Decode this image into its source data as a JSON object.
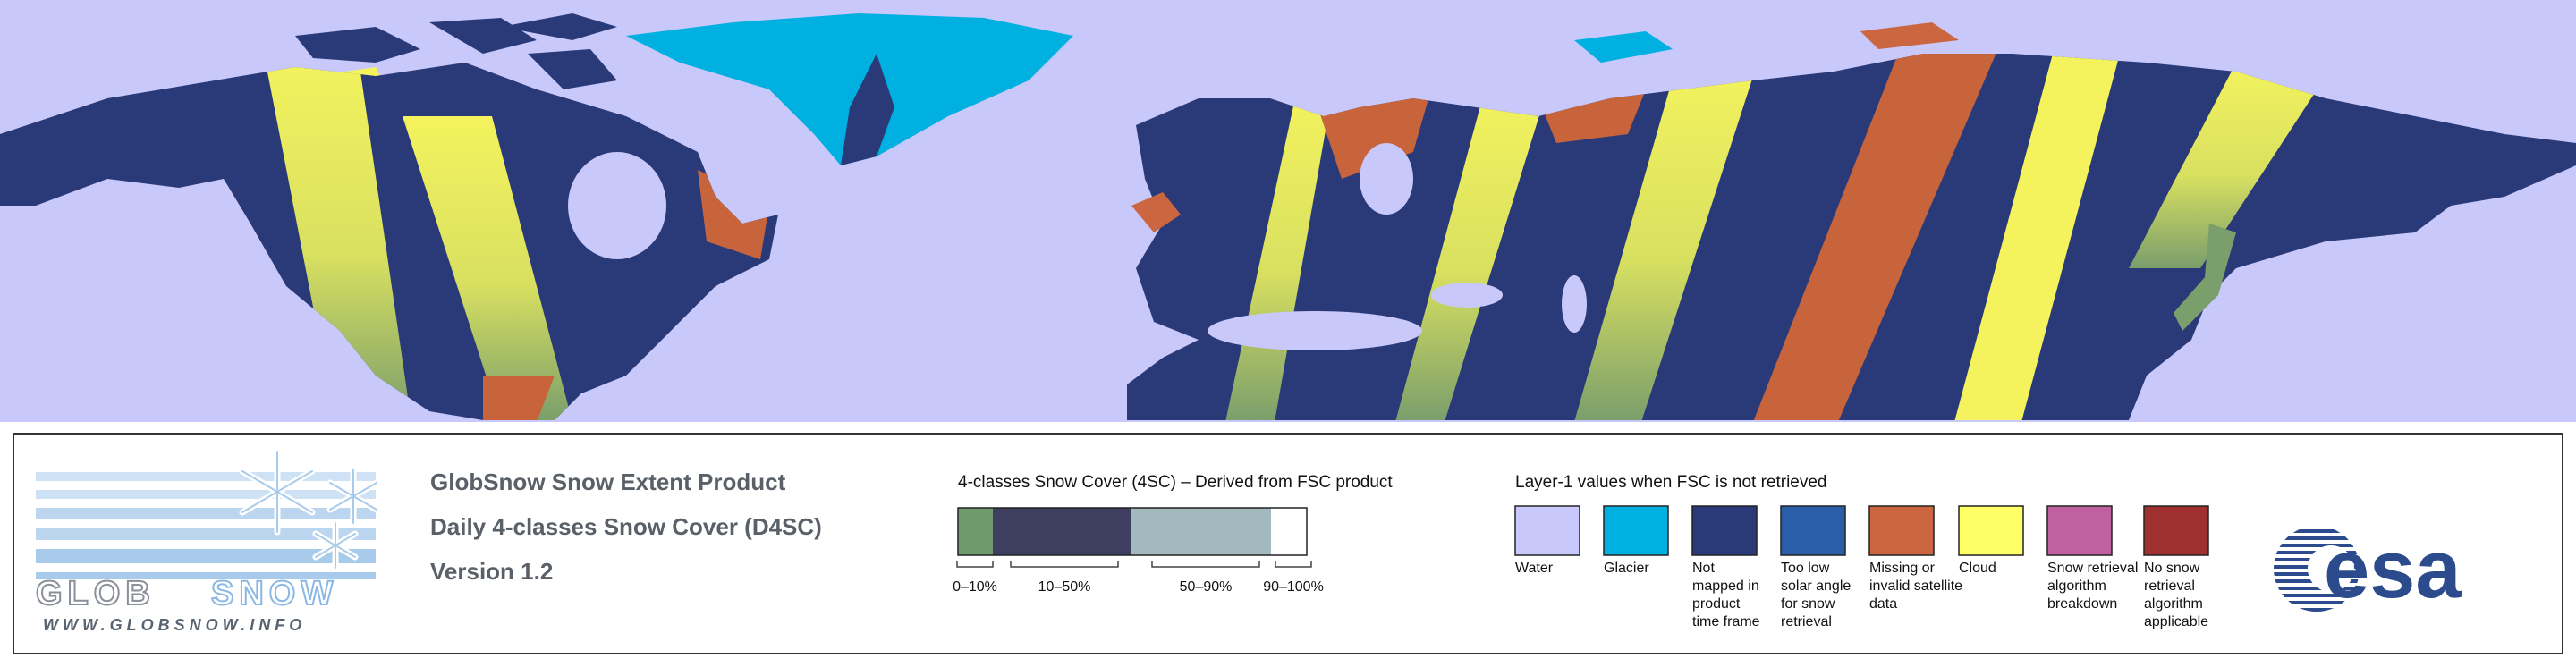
{
  "header": {
    "title_lines": [
      "GlobSnow Snow Extent Product",
      "Daily 4-classes Snow Cover (D4SC)",
      "Version 1.2"
    ]
  },
  "logo": {
    "name": [
      "GLOB",
      "SNOW"
    ],
    "url": "WWW.GLOBSNOW.INFO"
  },
  "snow_cover_4sc": {
    "heading": "4-classes Snow Cover (4SC) – Derived from FSC product",
    "classes": [
      {
        "label": "0–10%",
        "color": "#6e9a6c"
      },
      {
        "label": "10–50%",
        "color": "#3e3f60"
      },
      {
        "label": "50–90%",
        "color": "#a2b9bd"
      },
      {
        "label": "90–100%",
        "color": "#ffffff"
      }
    ]
  },
  "layer1": {
    "heading": "Layer-1 values when FSC is not retrieved",
    "items": [
      {
        "label": [
          "Water"
        ],
        "color": "#c8c8fa"
      },
      {
        "label": [
          "Glacier"
        ],
        "color": "#00b0e0"
      },
      {
        "label": [
          "Not",
          "mapped in",
          "product",
          "time frame"
        ],
        "color": "#2a3a78"
      },
      {
        "label": [
          "Too low",
          "solar angle",
          "for snow",
          "retrieval"
        ],
        "color": "#2b5ea8"
      },
      {
        "label": [
          "Missing or",
          "invalid satellite",
          "data"
        ],
        "color": "#cc6640"
      },
      {
        "label": [
          "Cloud"
        ],
        "color": "#ffff66"
      },
      {
        "label": [
          "Snow retrieval",
          "algorithm",
          "breakdown"
        ],
        "color": "#c060a0"
      },
      {
        "label": [
          "No snow",
          "retrieval",
          "algorithm",
          "applicable"
        ],
        "color": "#a03030"
      }
    ]
  },
  "esa_logo": "esa"
}
